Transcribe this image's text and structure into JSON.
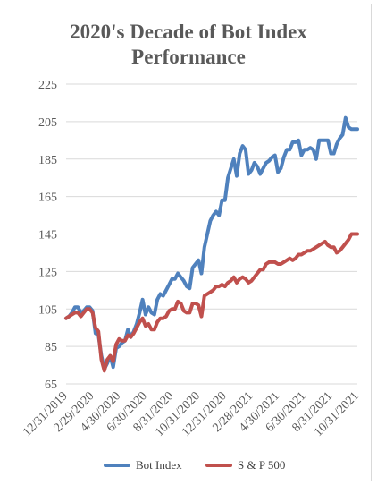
{
  "chart_data": {
    "type": "line",
    "title_lines": [
      "2020's Decade of Bot Index",
      "Performance"
    ],
    "xlabel": "",
    "ylabel": "",
    "ylim": [
      65,
      225
    ],
    "y_ticks": [
      65,
      85,
      105,
      125,
      145,
      165,
      185,
      205,
      225
    ],
    "x_tick_labels": [
      "12/31/2019",
      "2/29/2020",
      "4/30/2020",
      "6/30/2020",
      "8/31/2020",
      "10/31/2020",
      "12/31/2020",
      "2/28/2021",
      "4/30/2021",
      "6/30/2021",
      "8/31/2021",
      "10/31/2021"
    ],
    "grid": "horizontal",
    "legend_position": "bottom",
    "x_count": 100,
    "series": [
      {
        "name": "Bot Index",
        "color": "#4f81bd",
        "values": [
          100,
          101,
          103,
          106,
          106,
          103,
          104,
          106,
          106,
          104,
          92,
          91,
          80,
          73,
          76,
          80,
          74,
          84,
          85,
          87,
          88,
          94,
          90,
          93,
          97,
          103,
          110,
          102,
          106,
          103,
          102,
          110,
          113,
          112,
          115,
          118,
          121,
          121,
          124,
          122,
          120,
          117,
          116,
          127,
          129,
          131,
          124,
          138,
          145,
          152,
          155,
          157,
          155,
          163,
          163,
          175,
          180,
          185,
          176,
          188,
          192,
          190,
          177,
          179,
          183,
          181,
          177,
          180,
          183,
          184,
          186,
          187,
          178,
          180,
          186,
          190,
          190,
          194,
          194,
          195,
          187,
          190,
          190,
          191,
          190,
          185,
          195,
          195,
          195,
          195,
          188,
          188,
          193,
          196,
          198,
          207,
          202,
          201,
          201,
          201
        ]
      },
      {
        "name": "S & P 500",
        "color": "#c0504d",
        "values": [
          100,
          101,
          102,
          103,
          103,
          101,
          103,
          105,
          105,
          103,
          95,
          93,
          78,
          72,
          78,
          80,
          77,
          86,
          89,
          88,
          88,
          91,
          90,
          92,
          95,
          98,
          100,
          96,
          97,
          94,
          94,
          98,
          100,
          100,
          101,
          104,
          105,
          105,
          109,
          108,
          104,
          103,
          103,
          108,
          108,
          107,
          101,
          112,
          113,
          114,
          115,
          117,
          117,
          118,
          117,
          119,
          120,
          122,
          119,
          121,
          122,
          121,
          119,
          120,
          122,
          124,
          126,
          126,
          129,
          130,
          130,
          130,
          129,
          129,
          130,
          131,
          132,
          131,
          132,
          134,
          134,
          135,
          136,
          136,
          137,
          138,
          139,
          140,
          141,
          139,
          138,
          138,
          135,
          136,
          138,
          140,
          142,
          145,
          145,
          145
        ]
      }
    ]
  }
}
